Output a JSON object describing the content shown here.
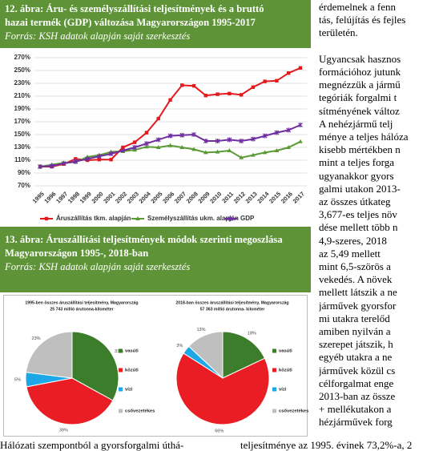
{
  "figures": [
    {
      "heading": [
        "12. ábra: Áru- és személyszállítási teljesítmények és a bruttó",
        "hazai termék (GDP) változása Magyarországon 1995-2017"
      ],
      "source": "Forrás: KSH adatok alapján saját szerkesztés"
    },
    {
      "heading": [
        "13. ábra: Áruszállítási teljesítmények módok szerinti megoszlása",
        "Magyarországon 1995-, 2018-ban"
      ],
      "source": "Forrás: KSH adatok alapján saját szerkesztés"
    }
  ],
  "chart_data": [
    {
      "type": "line",
      "categories": [
        "1995",
        "1996",
        "1997",
        "1998",
        "1999",
        "2000",
        "2001",
        "2002",
        "2003",
        "2004",
        "2005",
        "2006",
        "2007",
        "2008",
        "2009",
        "2010",
        "2011",
        "2012",
        "2013",
        "2014",
        "2015",
        "2016",
        "2017"
      ],
      "ylim": [
        70,
        270
      ],
      "yticks": [
        {
          "value": 70,
          "label": "70%"
        },
        {
          "value": 90,
          "label": "90%"
        },
        {
          "value": 110,
          "label": "110%"
        },
        {
          "value": 130,
          "label": "130%"
        },
        {
          "value": 150,
          "label": "150%"
        },
        {
          "value": 170,
          "label": "170%"
        },
        {
          "value": 190,
          "label": "190%"
        },
        {
          "value": 210,
          "label": "210%"
        },
        {
          "value": 230,
          "label": "230%"
        },
        {
          "value": 250,
          "label": "250%"
        },
        {
          "value": 270,
          "label": "270%"
        }
      ],
      "grid": true,
      "series": [
        {
          "name": "Áruszállítás tkm. alapján",
          "color": "#e31a1c",
          "marker": "square",
          "values": [
            100,
            100,
            104,
            112,
            110,
            111,
            111,
            130,
            138,
            153,
            175,
            204,
            227,
            226,
            211,
            213,
            214,
            212,
            224,
            233,
            234,
            246,
            254
          ]
        },
        {
          "name": "Személyszállítás ukm. alapján",
          "color": "#5a9a34",
          "marker": "triangle",
          "values": [
            100,
            103,
            106,
            107,
            115,
            118,
            123,
            124,
            126,
            131,
            130,
            133,
            130,
            127,
            122,
            123,
            125,
            114,
            118,
            122,
            125,
            130,
            139
          ]
        },
        {
          "name": "GDP",
          "color": "#6f2fa0",
          "marker": "star",
          "values": [
            100,
            101,
            105,
            108,
            112,
            116,
            120,
            125,
            130,
            136,
            142,
            148,
            149,
            150,
            140,
            140,
            142,
            140,
            143,
            148,
            153,
            157,
            165
          ]
        }
      ]
    },
    {
      "type": "pie",
      "title": [
        "1995-ben összes áruszállítási teljesítmény, Magyarország",
        "25 743 millió árutonna-kilométer"
      ],
      "categories": [
        "vasúti",
        "közúti",
        "vízi",
        "csővezetékes"
      ],
      "values": [
        33,
        39,
        5,
        23
      ],
      "value_labels": [
        "33%",
        "39%",
        "5%",
        "23%"
      ],
      "colors": [
        "#3c7d2b",
        "#ea1c24",
        "#1ea7e6",
        "#bfbfbf"
      ]
    },
    {
      "type": "pie",
      "title": [
        "2018-ban összes áruszállítási teljesítmény, Magyarország",
        "57 363 millió árutonna- kilométer"
      ],
      "categories": [
        "vasúti",
        "közúti",
        "vízi",
        "csővezetékes"
      ],
      "values": [
        18,
        66,
        3,
        13
      ],
      "value_labels": [
        "18%",
        "66%",
        "3%",
        "13%"
      ],
      "colors": [
        "#3c7d2b",
        "#ea1c24",
        "#1ea7e6",
        "#bfbfbf"
      ]
    }
  ],
  "text": {
    "right_column": [
      "érdemelnek a fenn",
      "tás, felújítás és fejles",
      "területén.",
      "Ugyancsak hasznos",
      "formációhoz jutunk",
      "megnézzük a jármű",
      "tegóriák forgalmi t",
      "sítményének változ",
      "A nehézjármű telj",
      "ménye a teljes hálóza",
      "kisebb mértékben n",
      "mint a teljes forga",
      "ugyanakkor gyors",
      "galmi utakon 2013-",
      "az összes útkateg",
      "3,677-es teljes növ",
      "dése mellett több n",
      "4,9-szeres, 2018",
      "az 5,49 mellett",
      "mint 6,5-szörös a",
      "vekedés. A növek",
      "mellett látszik a ne",
      "járművek gyorsfor",
      "mi utakra terelőd",
      "amiben nyilván a",
      "szerepet játszik, h",
      "egyéb utakra a ne",
      "járművek közül cs",
      "célforgalmat enge",
      "2013-ban az össze",
      "+ mellékutakon a",
      "hézjárművek forg"
    ],
    "bottom_left": "Hálózati szempontból a gyorsforgalmi úthá-",
    "bottom_right": "teljesítménye az 1995. évinek 73,2%-a, 2"
  }
}
